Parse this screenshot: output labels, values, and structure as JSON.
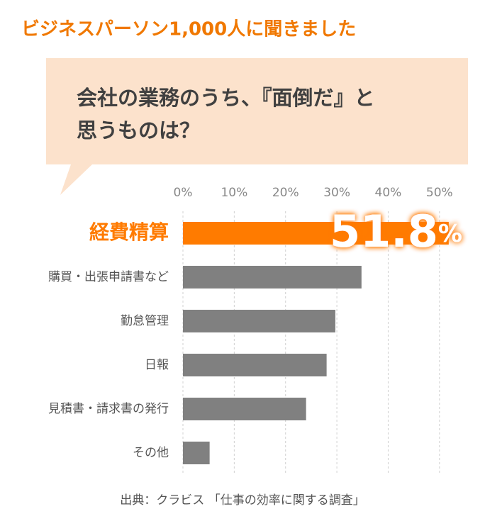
{
  "chart_data": {
    "type": "bar",
    "orientation": "horizontal",
    "title": "ビジネスパーソン1,000人に聞きました",
    "subtitle": [
      "会社の業務のうち、『面倒だ』と",
      "思うものは？"
    ],
    "categories": [
      "経費精算",
      "購買・出張申請書など",
      "勤怠管理",
      "日報",
      "見積書・請求書の発行",
      "その他"
    ],
    "values": [
      51.8,
      34.8,
      29.7,
      28.0,
      24.0,
      5.2
    ],
    "value_labels": [
      "51.8%",
      null,
      null,
      null,
      null,
      null
    ],
    "colors": [
      "#ff7b00",
      "#808080",
      "#808080",
      "#808080",
      "#808080",
      "#808080"
    ],
    "xlim": [
      0,
      55
    ],
    "xticks": [
      {
        "value": 0,
        "label": "0%"
      },
      {
        "value": 10,
        "label": "10%"
      },
      {
        "value": 20,
        "label": "20%"
      },
      {
        "value": 30,
        "label": "30%"
      },
      {
        "value": 40,
        "label": "40%"
      },
      {
        "value": 50,
        "label": "50%"
      }
    ],
    "grid": true,
    "source": "出典：クラビス 「仕事の効率に関する調査」"
  }
}
